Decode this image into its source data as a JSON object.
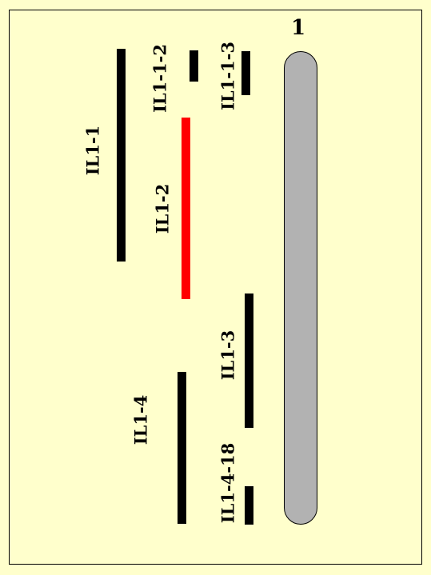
{
  "chromosome": {
    "label": "1",
    "color": "#B2B2B2"
  },
  "segments": [
    {
      "id": "IL1-1",
      "label": "IL1-1",
      "color": "#000000"
    },
    {
      "id": "IL1-1-2",
      "label": "IL1-1-2",
      "color": "#000000"
    },
    {
      "id": "IL1-1-3",
      "label": "IL1-1-3",
      "color": "#000000"
    },
    {
      "id": "IL1-2",
      "label": "IL1-2",
      "color": "#FF0000",
      "highlighted": true
    },
    {
      "id": "IL1-3",
      "label": "IL1-3",
      "color": "#000000"
    },
    {
      "id": "IL1-4",
      "label": "IL1-4",
      "color": "#000000"
    },
    {
      "id": "IL1-4-18",
      "label": "IL1-4-18",
      "color": "#000000"
    }
  ],
  "colors": {
    "background": "#FFFFCC",
    "border": "#000000"
  }
}
